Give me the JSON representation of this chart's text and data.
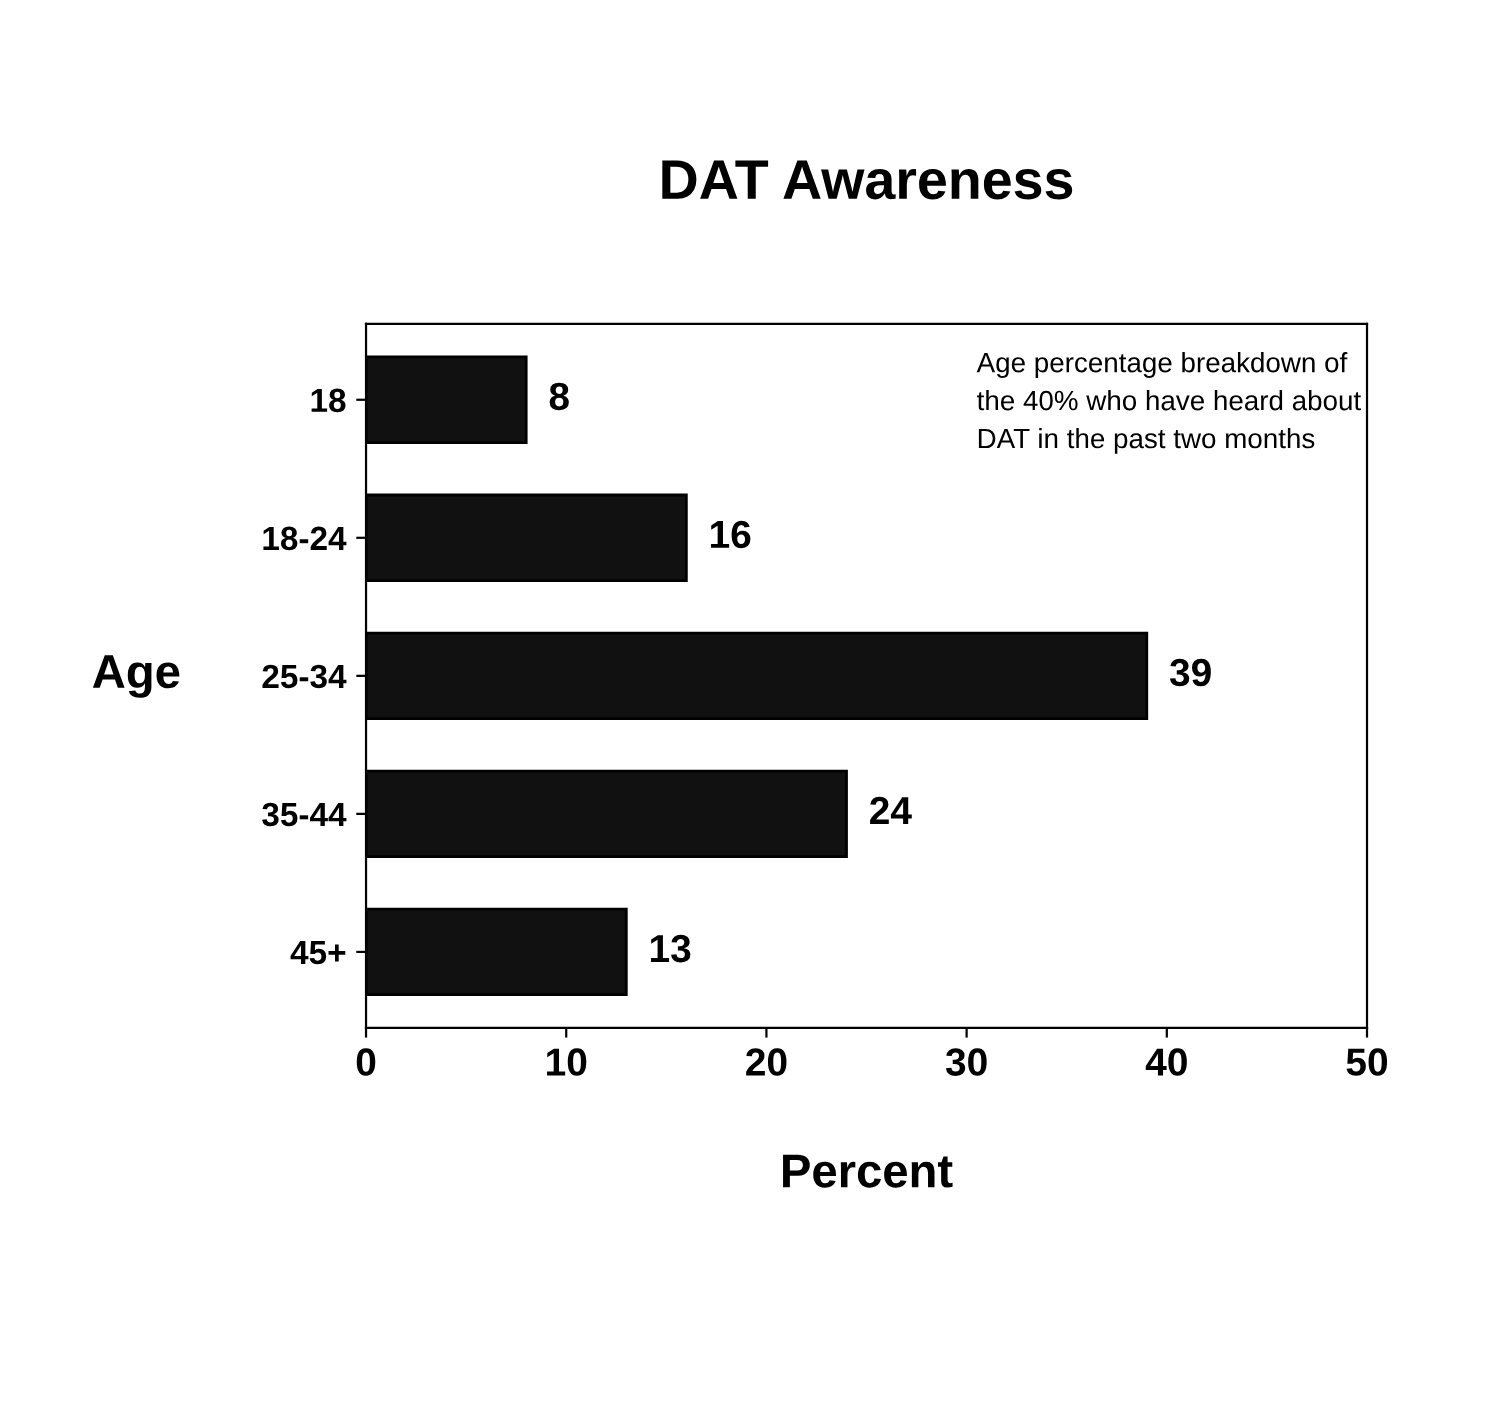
{
  "chart_data": {
    "type": "bar",
    "orientation": "horizontal",
    "title": "DAT Awareness",
    "xlabel": "Percent",
    "ylabel": "Age",
    "categories": [
      "18",
      "18-24",
      "25-34",
      "35-44",
      "45+"
    ],
    "values": [
      8,
      16,
      39,
      24,
      13
    ],
    "color": "#111111",
    "xlim": [
      0,
      50
    ],
    "xticks": [
      0,
      10,
      20,
      30,
      40,
      50
    ],
    "data_labels": true,
    "grid": false,
    "annotations": [
      "Age percentage breakdown of\nthe 40% who have heard about\nDAT in the past two months"
    ]
  }
}
